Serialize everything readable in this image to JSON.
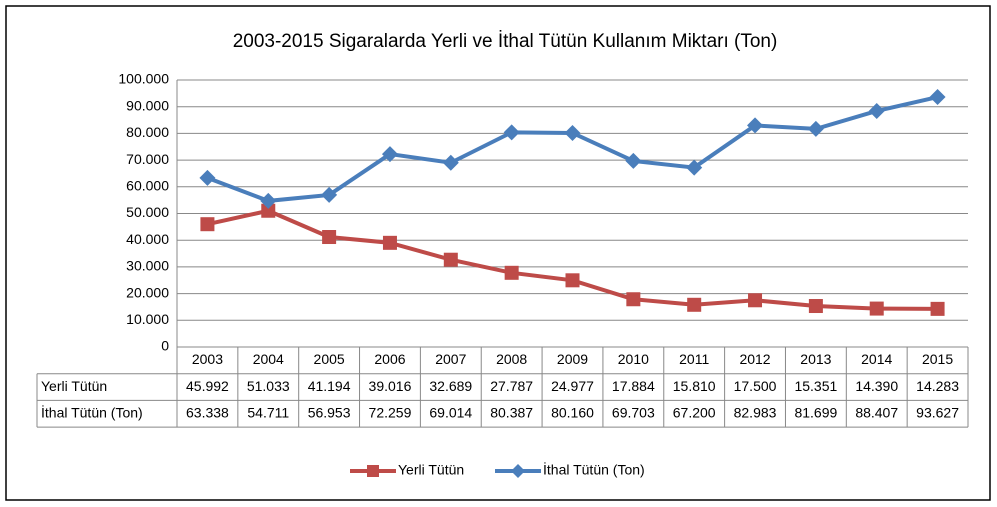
{
  "chart_data": {
    "type": "line",
    "title": "2003-2015 Sigaralarda Yerli ve İthal Tütün Kullanım Miktarı  (Ton)",
    "categories": [
      "2003",
      "2004",
      "2005",
      "2006",
      "2007",
      "2008",
      "2009",
      "2010",
      "2011",
      "2012",
      "2013",
      "2014",
      "2015"
    ],
    "series": [
      {
        "name": "Yerli Tütün",
        "color": "#be4b48",
        "values": [
          45992,
          51033,
          41194,
          39016,
          32689,
          27787,
          24977,
          17884,
          15810,
          17500,
          15351,
          14390,
          14283
        ],
        "value_labels": [
          "45.992",
          "51.033",
          "41.194",
          "39.016",
          "32.689",
          "27.787",
          "24.977",
          "17.884",
          "15.810",
          "17.500",
          "15.351",
          "14.390",
          "14.283"
        ]
      },
      {
        "name": "İthal Tütün (Ton)",
        "color": "#4a7ebb",
        "values": [
          63338,
          54711,
          56953,
          72259,
          69014,
          80387,
          80160,
          69703,
          67200,
          82983,
          81699,
          88407,
          93627
        ],
        "value_labels": [
          "63.338",
          "54.711",
          "56.953",
          "72.259",
          "69.014",
          "80.387",
          "80.160",
          "69.703",
          "67.200",
          "82.983",
          "81.699",
          "88.407",
          "93.627"
        ]
      }
    ],
    "ylim": [
      0,
      100000
    ],
    "yticks": [
      0,
      {
        "value": 10000,
        "label": "10.000"
      },
      {
        "value": 20000,
        "label": "20.000"
      },
      {
        "value": 30000,
        "label": "30.000"
      },
      {
        "value": 40000,
        "label": "40.000"
      },
      {
        "value": 50000,
        "label": "50.000"
      },
      {
        "value": 60000,
        "label": "60.000"
      },
      {
        "value": 70000,
        "label": "70.000"
      },
      {
        "value": 80000,
        "label": "80.000"
      },
      {
        "value": 90000,
        "label": "90.000"
      },
      {
        "value": 100000,
        "label": "100.000"
      }
    ],
    "grid": true,
    "legend": "bottom"
  }
}
